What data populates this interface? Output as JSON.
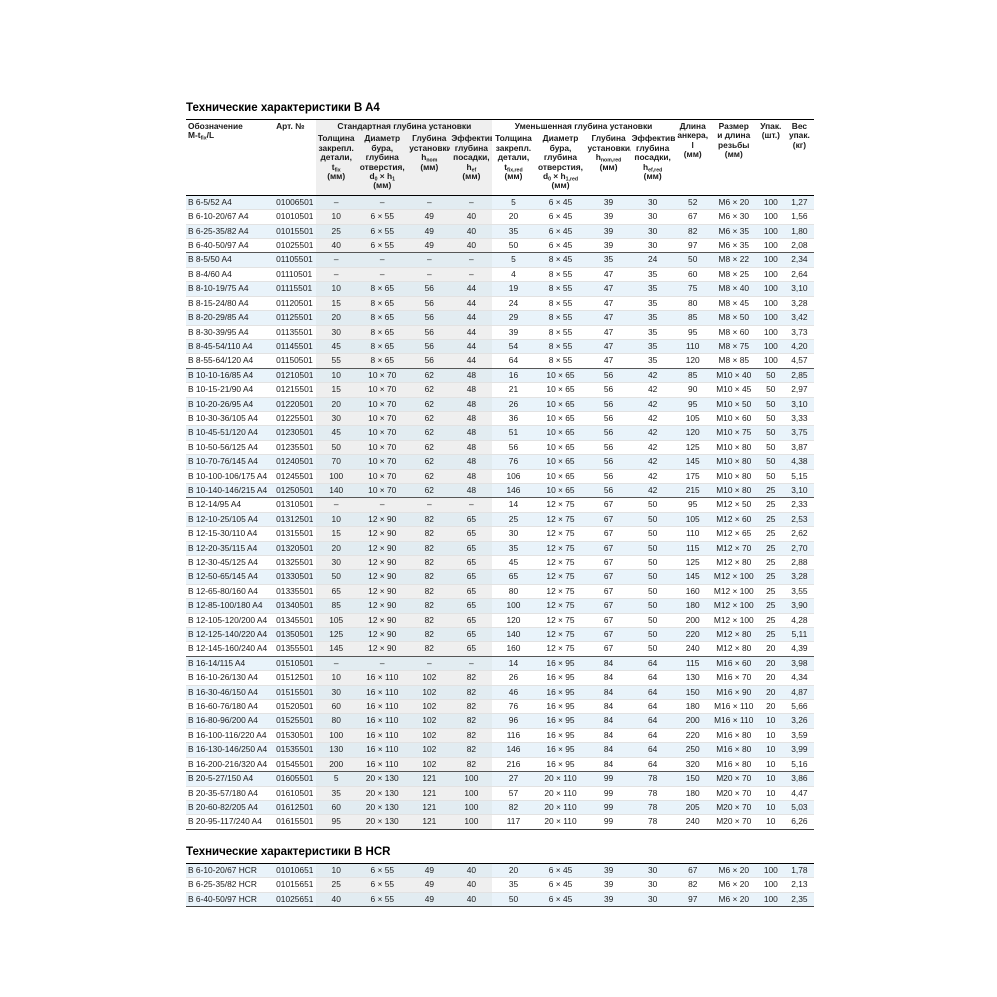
{
  "titles": {
    "a4": "Технические характеристики B A4",
    "hcr": "Технические характеристики B HCR"
  },
  "table_headers": {
    "designation": "Обозначение<br>M-t<sub>fix</sub>/L",
    "art": "Арт. №",
    "group_standard": "Стандартная глубина установки",
    "group_reduced": "Уменьшенная глубина установки",
    "thickness_std": "Толщина<br>закрепл.<br>детали,<br>t<sub>fix</sub><br>(мм)",
    "drill_std": "Диаметр<br>бура,<br>глубина<br>отверстия,<br>d<sub>0</sub> × h<sub>1</sub><br>(мм)",
    "depth_std": "Глубина<br>установки,<br>h<sub>nom</sub><br>(мм)",
    "effective_std": "Эффектив.<br>глубина<br>посадки, h<sub>ef</sub><br>(мм)",
    "thickness_red": "Толщина<br>закрепл.<br>детали,<br>t<sub>fix,red</sub><br>(мм)",
    "drill_red": "Диаметр<br>бура,<br>глубина<br>отверстия,<br>d<sub>0</sub> × h<sub>1,red</sub><br>(мм)",
    "depth_red": "Глубина<br>установки,<br>h<sub>nom,red</sub><br>(мм)",
    "effective_red": "Эффектив.<br>глубина<br>посадки,<br>h<sub>ef,red</sub><br>(мм)",
    "length": "Длина<br>анкера,<br>l<br>(мм)",
    "thread": "Размер<br>и длина<br>резьбы<br>(мм)",
    "pack": "Упак.<br>(шт.)",
    "weight": "Вес<br>упак.<br>(кг)"
  },
  "tables": {
    "a4": {
      "groups": [
        [
          [
            "B 6-5/52 A4",
            "01006501",
            "–",
            "–",
            "–",
            "–",
            "5",
            "6 × 45",
            "39",
            "30",
            "52",
            "M6 × 20",
            "100",
            "1,27"
          ],
          [
            "B 6-10-20/67 A4",
            "01010501",
            "10",
            "6 × 55",
            "49",
            "40",
            "20",
            "6 × 45",
            "39",
            "30",
            "67",
            "M6 × 30",
            "100",
            "1,56"
          ],
          [
            "B 6-25-35/82 A4",
            "01015501",
            "25",
            "6 × 55",
            "49",
            "40",
            "35",
            "6 × 45",
            "39",
            "30",
            "82",
            "M6 × 35",
            "100",
            "1,80"
          ],
          [
            "B 6-40-50/97 A4",
            "01025501",
            "40",
            "6 × 55",
            "49",
            "40",
            "50",
            "6 × 45",
            "39",
            "30",
            "97",
            "M6 × 35",
            "100",
            "2,08"
          ]
        ],
        [
          [
            "B 8-5/50 A4",
            "01105501",
            "–",
            "–",
            "–",
            "–",
            "5",
            "8 × 45",
            "35",
            "24",
            "50",
            "M8 × 22",
            "100",
            "2,34"
          ],
          [
            "B 8-4/60 A4",
            "01110501",
            "–",
            "–",
            "–",
            "–",
            "4",
            "8 × 55",
            "47",
            "35",
            "60",
            "M8 × 25",
            "100",
            "2,64"
          ],
          [
            "B 8-10-19/75 A4",
            "01115501",
            "10",
            "8 × 65",
            "56",
            "44",
            "19",
            "8 × 55",
            "47",
            "35",
            "75",
            "M8 × 40",
            "100",
            "3,10"
          ],
          [
            "B 8-15-24/80 A4",
            "01120501",
            "15",
            "8 × 65",
            "56",
            "44",
            "24",
            "8 × 55",
            "47",
            "35",
            "80",
            "M8 × 45",
            "100",
            "3,28"
          ],
          [
            "B 8-20-29/85 A4",
            "01125501",
            "20",
            "8 × 65",
            "56",
            "44",
            "29",
            "8 × 55",
            "47",
            "35",
            "85",
            "M8 × 50",
            "100",
            "3,42"
          ],
          [
            "B 8-30-39/95 A4",
            "01135501",
            "30",
            "8 × 65",
            "56",
            "44",
            "39",
            "8 × 55",
            "47",
            "35",
            "95",
            "M8 × 60",
            "100",
            "3,73"
          ],
          [
            "B 8-45-54/110 A4",
            "01145501",
            "45",
            "8 × 65",
            "56",
            "44",
            "54",
            "8 × 55",
            "47",
            "35",
            "110",
            "M8 × 75",
            "100",
            "4,20"
          ],
          [
            "B 8-55-64/120 A4",
            "01150501",
            "55",
            "8 × 65",
            "56",
            "44",
            "64",
            "8 × 55",
            "47",
            "35",
            "120",
            "M8 × 85",
            "100",
            "4,57"
          ]
        ],
        [
          [
            "B 10-10-16/85 A4",
            "01210501",
            "10",
            "10 × 70",
            "62",
            "48",
            "16",
            "10 × 65",
            "56",
            "42",
            "85",
            "M10 × 40",
            "50",
            "2,85"
          ],
          [
            "B 10-15-21/90 A4",
            "01215501",
            "15",
            "10 × 70",
            "62",
            "48",
            "21",
            "10 × 65",
            "56",
            "42",
            "90",
            "M10 × 45",
            "50",
            "2,97"
          ],
          [
            "B 10-20-26/95 A4",
            "01220501",
            "20",
            "10 × 70",
            "62",
            "48",
            "26",
            "10 × 65",
            "56",
            "42",
            "95",
            "M10 × 50",
            "50",
            "3,10"
          ],
          [
            "B 10-30-36/105 A4",
            "01225501",
            "30",
            "10 × 70",
            "62",
            "48",
            "36",
            "10 × 65",
            "56",
            "42",
            "105",
            "M10 × 60",
            "50",
            "3,33"
          ],
          [
            "B 10-45-51/120 A4",
            "01230501",
            "45",
            "10 × 70",
            "62",
            "48",
            "51",
            "10 × 65",
            "56",
            "42",
            "120",
            "M10 × 75",
            "50",
            "3,75"
          ],
          [
            "B 10-50-56/125 A4",
            "01235501",
            "50",
            "10 × 70",
            "62",
            "48",
            "56",
            "10 × 65",
            "56",
            "42",
            "125",
            "M10 × 80",
            "50",
            "3,87"
          ],
          [
            "B 10-70-76/145 A4",
            "01240501",
            "70",
            "10 × 70",
            "62",
            "48",
            "76",
            "10 × 65",
            "56",
            "42",
            "145",
            "M10 × 80",
            "50",
            "4,38"
          ],
          [
            "B 10-100-106/175 A4",
            "01245501",
            "100",
            "10 × 70",
            "62",
            "48",
            "106",
            "10 × 65",
            "56",
            "42",
            "175",
            "M10 × 80",
            "50",
            "5,15"
          ],
          [
            "B 10-140-146/215 A4",
            "01250501",
            "140",
            "10 × 70",
            "62",
            "48",
            "146",
            "10 × 65",
            "56",
            "42",
            "215",
            "M10 × 80",
            "25",
            "3,10"
          ]
        ],
        [
          [
            "B 12-14/95 A4",
            "01310501",
            "–",
            "–",
            "–",
            "–",
            "14",
            "12 × 75",
            "67",
            "50",
            "95",
            "M12 × 50",
            "25",
            "2,33"
          ],
          [
            "B 12-10-25/105 A4",
            "01312501",
            "10",
            "12 × 90",
            "82",
            "65",
            "25",
            "12 × 75",
            "67",
            "50",
            "105",
            "M12 × 60",
            "25",
            "2,53"
          ],
          [
            "B 12-15-30/110 A4",
            "01315501",
            "15",
            "12 × 90",
            "82",
            "65",
            "30",
            "12 × 75",
            "67",
            "50",
            "110",
            "M12 × 65",
            "25",
            "2,62"
          ],
          [
            "B 12-20-35/115 A4",
            "01320501",
            "20",
            "12 × 90",
            "82",
            "65",
            "35",
            "12 × 75",
            "67",
            "50",
            "115",
            "M12 × 70",
            "25",
            "2,70"
          ],
          [
            "B 12-30-45/125 A4",
            "01325501",
            "30",
            "12 × 90",
            "82",
            "65",
            "45",
            "12 × 75",
            "67",
            "50",
            "125",
            "M12 × 80",
            "25",
            "2,88"
          ],
          [
            "B 12-50-65/145 A4",
            "01330501",
            "50",
            "12 × 90",
            "82",
            "65",
            "65",
            "12 × 75",
            "67",
            "50",
            "145",
            "M12 × 100",
            "25",
            "3,28"
          ],
          [
            "B 12-65-80/160 A4",
            "01335501",
            "65",
            "12 × 90",
            "82",
            "65",
            "80",
            "12 × 75",
            "67",
            "50",
            "160",
            "M12 × 100",
            "25",
            "3,55"
          ],
          [
            "B 12-85-100/180 A4",
            "01340501",
            "85",
            "12 × 90",
            "82",
            "65",
            "100",
            "12 × 75",
            "67",
            "50",
            "180",
            "M12 × 100",
            "25",
            "3,90"
          ],
          [
            "B 12-105-120/200 A4",
            "01345501",
            "105",
            "12 × 90",
            "82",
            "65",
            "120",
            "12 × 75",
            "67",
            "50",
            "200",
            "M12 × 100",
            "25",
            "4,28"
          ],
          [
            "B 12-125-140/220 A4",
            "01350501",
            "125",
            "12 × 90",
            "82",
            "65",
            "140",
            "12 × 75",
            "67",
            "50",
            "220",
            "M12 × 80",
            "25",
            "5,11"
          ],
          [
            "B 12-145-160/240 A4",
            "01355501",
            "145",
            "12 × 90",
            "82",
            "65",
            "160",
            "12 × 75",
            "67",
            "50",
            "240",
            "M12 × 80",
            "20",
            "4,39"
          ]
        ],
        [
          [
            "B 16-14/115 A4",
            "01510501",
            "–",
            "–",
            "–",
            "–",
            "14",
            "16 × 95",
            "84",
            "64",
            "115",
            "M16 × 60",
            "20",
            "3,98"
          ],
          [
            "B 16-10-26/130 A4",
            "01512501",
            "10",
            "16 × 110",
            "102",
            "82",
            "26",
            "16 × 95",
            "84",
            "64",
            "130",
            "M16 × 70",
            "20",
            "4,34"
          ],
          [
            "B 16-30-46/150 A4",
            "01515501",
            "30",
            "16 × 110",
            "102",
            "82",
            "46",
            "16 × 95",
            "84",
            "64",
            "150",
            "M16 × 90",
            "20",
            "4,87"
          ],
          [
            "B 16-60-76/180 A4",
            "01520501",
            "60",
            "16 × 110",
            "102",
            "82",
            "76",
            "16 × 95",
            "84",
            "64",
            "180",
            "M16 × 110",
            "20",
            "5,66"
          ],
          [
            "B 16-80-96/200 A4",
            "01525501",
            "80",
            "16 × 110",
            "102",
            "82",
            "96",
            "16 × 95",
            "84",
            "64",
            "200",
            "M16 × 110",
            "10",
            "3,26"
          ],
          [
            "B 16-100-116/220 A4",
            "01530501",
            "100",
            "16 × 110",
            "102",
            "82",
            "116",
            "16 × 95",
            "84",
            "64",
            "220",
            "M16 × 80",
            "10",
            "3,59"
          ],
          [
            "B 16-130-146/250 A4",
            "01535501",
            "130",
            "16 × 110",
            "102",
            "82",
            "146",
            "16 × 95",
            "84",
            "64",
            "250",
            "M16 × 80",
            "10",
            "3,99"
          ],
          [
            "B 16-200-216/320 A4",
            "01545501",
            "200",
            "16 × 110",
            "102",
            "82",
            "216",
            "16 × 95",
            "84",
            "64",
            "320",
            "M16 × 80",
            "10",
            "5,16"
          ]
        ],
        [
          [
            "B 20-5-27/150 A4",
            "01605501",
            "5",
            "20 × 130",
            "121",
            "100",
            "27",
            "20 × 110",
            "99",
            "78",
            "150",
            "M20 × 70",
            "10",
            "3,86"
          ],
          [
            "B 20-35-57/180 A4",
            "01610501",
            "35",
            "20 × 130",
            "121",
            "100",
            "57",
            "20 × 110",
            "99",
            "78",
            "180",
            "M20 × 70",
            "10",
            "4,47"
          ],
          [
            "B 20-60-82/205 A4",
            "01612501",
            "60",
            "20 × 130",
            "121",
            "100",
            "82",
            "20 × 110",
            "99",
            "78",
            "205",
            "M20 × 70",
            "10",
            "5,03"
          ],
          [
            "B 20-95-117/240 A4",
            "01615501",
            "95",
            "20 × 130",
            "121",
            "100",
            "117",
            "20 × 110",
            "99",
            "78",
            "240",
            "M20 × 70",
            "10",
            "6,26"
          ]
        ]
      ]
    },
    "hcr": {
      "groups": [
        [
          [
            "B 6-10-20/67 HCR",
            "01010651",
            "10",
            "6 × 55",
            "49",
            "40",
            "20",
            "6 × 45",
            "39",
            "30",
            "67",
            "M6 × 20",
            "100",
            "1,78"
          ],
          [
            "B 6-25-35/82 HCR",
            "01015651",
            "25",
            "6 × 55",
            "49",
            "40",
            "35",
            "6 × 45",
            "39",
            "30",
            "82",
            "M6 × 20",
            "100",
            "2,13"
          ],
          [
            "B 6-40-50/97 HCR",
            "01025651",
            "40",
            "6 × 55",
            "49",
            "40",
            "50",
            "6 × 45",
            "39",
            "30",
            "97",
            "M6 × 20",
            "100",
            "2,35"
          ]
        ]
      ]
    }
  }
}
